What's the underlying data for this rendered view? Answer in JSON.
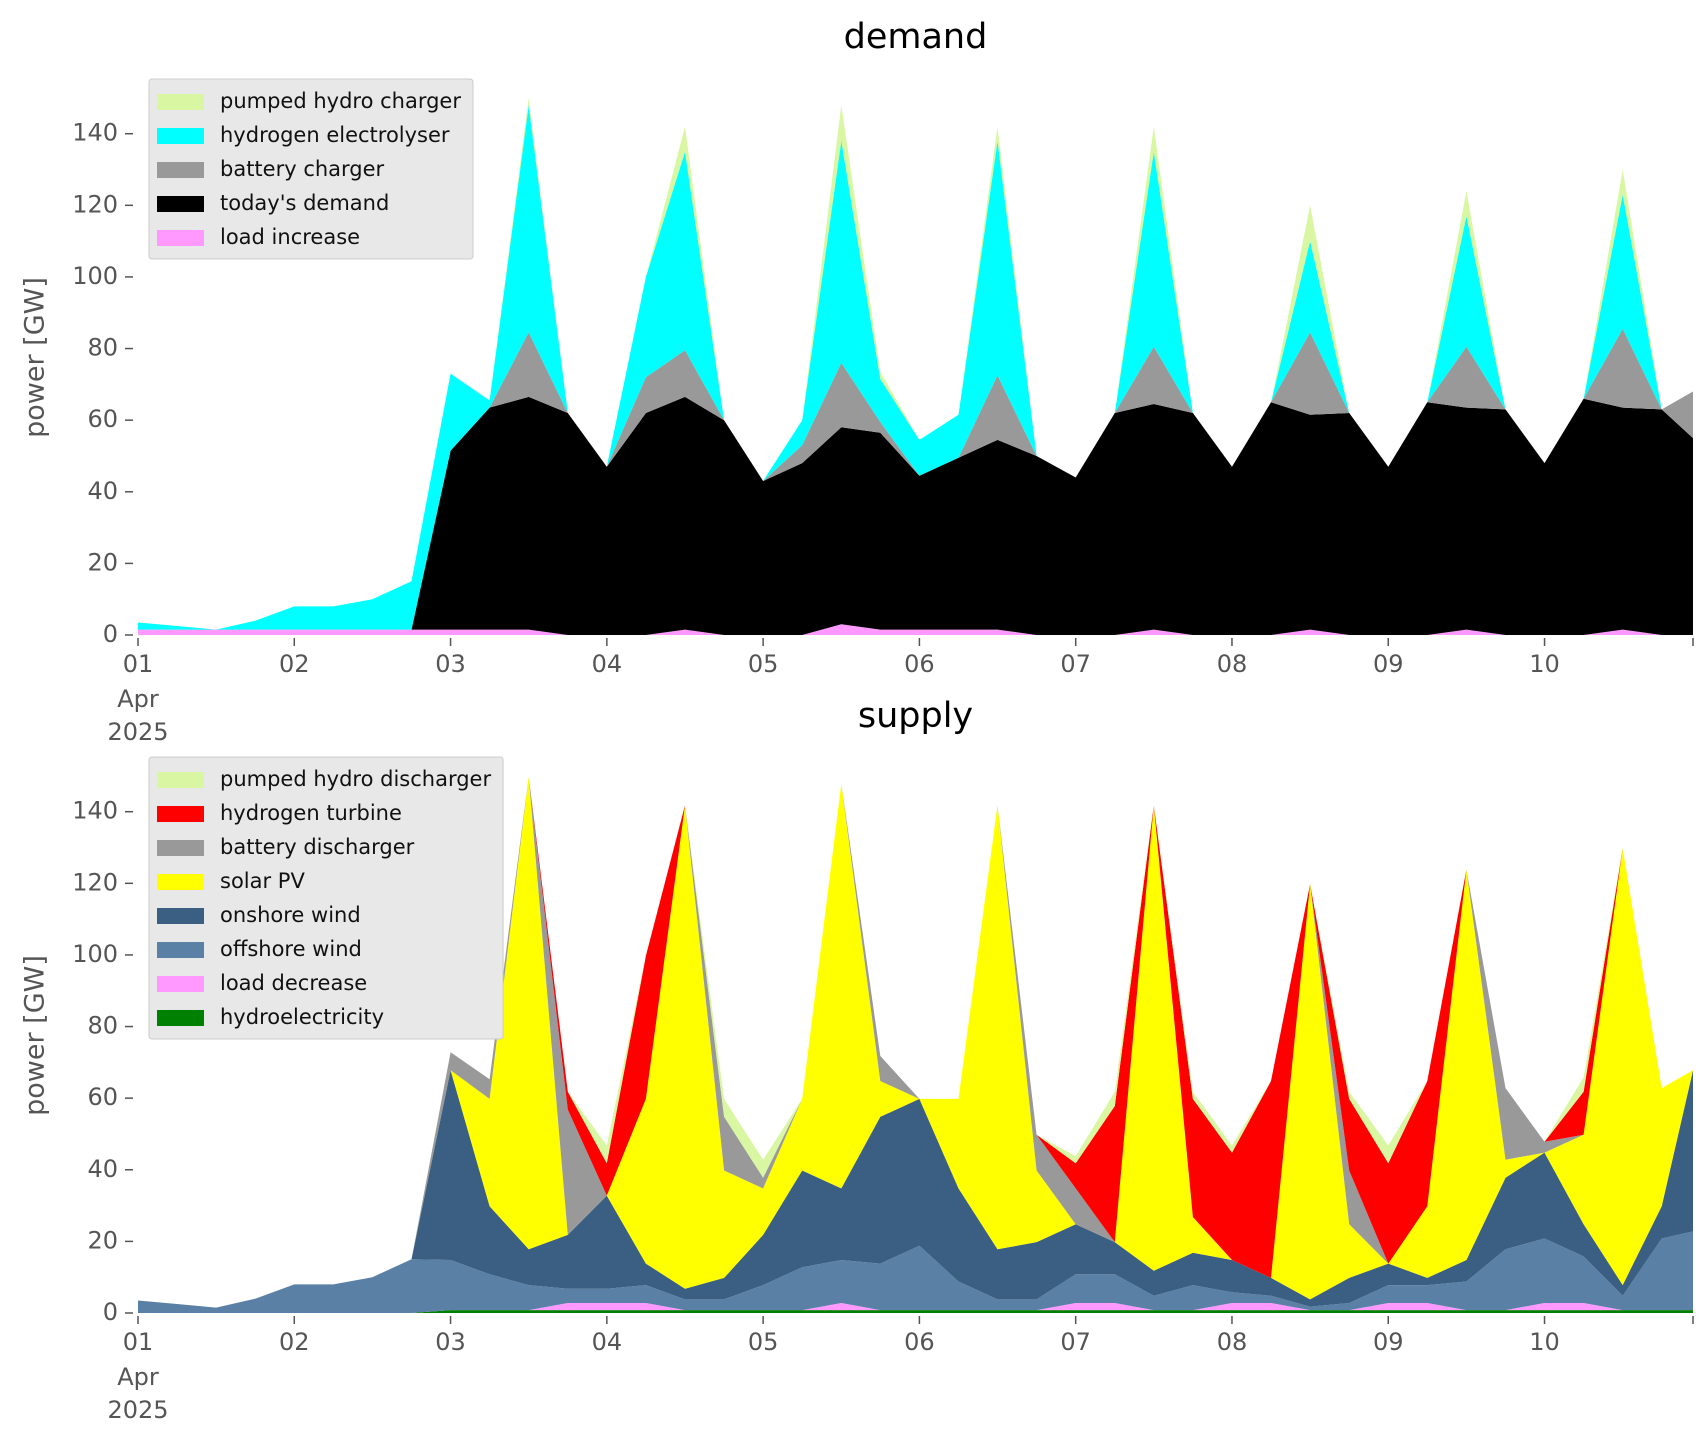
{
  "chart_data": [
    {
      "type": "stacked_area",
      "title": "demand",
      "ylabel": "power [GW]",
      "x": [
        0,
        0.25,
        0.5,
        0.75,
        1,
        1.25,
        1.5,
        1.75,
        2,
        2.25,
        2.5,
        2.75,
        3,
        3.25,
        3.5,
        3.75,
        4,
        4.25,
        4.5,
        4.75,
        5,
        5.25,
        5.5,
        5.75,
        6,
        6.25,
        6.5,
        6.75,
        7,
        7.25,
        7.5,
        7.75,
        8,
        8.25,
        8.5,
        8.75,
        9,
        9.25,
        9.5,
        9.75,
        9.95
      ],
      "xlim": [
        0,
        9.95
      ],
      "xticks": [
        {
          "value": 0,
          "label": "01"
        },
        {
          "value": 1,
          "label": "02"
        },
        {
          "value": 2,
          "label": "03"
        },
        {
          "value": 3,
          "label": "04"
        },
        {
          "value": 4,
          "label": "05"
        },
        {
          "value": 5,
          "label": "06"
        },
        {
          "value": 6,
          "label": "07"
        },
        {
          "value": 7,
          "label": "08"
        },
        {
          "value": 8,
          "label": "09"
        },
        {
          "value": 9,
          "label": "10"
        }
      ],
      "xtick_sublabels": [
        "Apr",
        "2025"
      ],
      "ylim": [
        0,
        155
      ],
      "yticks": [
        0,
        20,
        40,
        60,
        80,
        100,
        120,
        140
      ],
      "legend": "upper left",
      "series": [
        {
          "name": "load increase",
          "color": "#ff99ff",
          "values": [
            1.5,
            1.5,
            1.5,
            1.5,
            1.5,
            1.5,
            1.5,
            1.5,
            1.5,
            1.5,
            1.5,
            0,
            0,
            0,
            1.5,
            0,
            0,
            0,
            3,
            1.5,
            1.5,
            1.5,
            1.5,
            0,
            0,
            0,
            1.5,
            0,
            0,
            0,
            1.5,
            0,
            0,
            0,
            1.5,
            0,
            0,
            0,
            1.5,
            0,
            0
          ]
        },
        {
          "name": "today's demand",
          "color": "#000000",
          "values": [
            0,
            0,
            0,
            0,
            0,
            0,
            0,
            0,
            50,
            62,
            65,
            62,
            47,
            62,
            65,
            60,
            43,
            48,
            55,
            55,
            43,
            48,
            53,
            50,
            44,
            62,
            63,
            62,
            47,
            65,
            60,
            62,
            47,
            65,
            62,
            63,
            48,
            66,
            62,
            63,
            55
          ]
        },
        {
          "name": "battery charger",
          "color": "#999999",
          "values": [
            0,
            0,
            0,
            0,
            0,
            0,
            0,
            0,
            0,
            0,
            18,
            0,
            0,
            10,
            13,
            0,
            0,
            5,
            18,
            3,
            0,
            0,
            18,
            0,
            0,
            0,
            16,
            0,
            0,
            0,
            23,
            0,
            0,
            0,
            17,
            0,
            0,
            0,
            22,
            0,
            13
          ]
        },
        {
          "name": "hydrogen electrolyser",
          "color": "#00ffff",
          "values": [
            2,
            1,
            0,
            2.5,
            6.5,
            6.5,
            8.5,
            13.5,
            21.5,
            2,
            63.5,
            0,
            0,
            28,
            55.5,
            0,
            0,
            7,
            62,
            12,
            10,
            12,
            65.5,
            0,
            0,
            0,
            54.5,
            0,
            0,
            0,
            25.5,
            0,
            0,
            0,
            36.5,
            0,
            0,
            0,
            37.5,
            0,
            0
          ]
        },
        {
          "name": "pumped hydro charger",
          "color": "#d9f7a3",
          "values": [
            0,
            0,
            0,
            0,
            0,
            0,
            0,
            0,
            0,
            0,
            2,
            0,
            0,
            0,
            7,
            0,
            0,
            0,
            10,
            2,
            0,
            0,
            4,
            0,
            0,
            0,
            7,
            0,
            0,
            0,
            10,
            0,
            0,
            0,
            7,
            0,
            0,
            0,
            7,
            0,
            0
          ]
        }
      ]
    },
    {
      "type": "stacked_area",
      "title": "supply",
      "ylabel": "power [GW]",
      "x": [
        0,
        0.25,
        0.5,
        0.75,
        1,
        1.25,
        1.5,
        1.75,
        2,
        2.25,
        2.5,
        2.75,
        3,
        3.25,
        3.5,
        3.75,
        4,
        4.25,
        4.5,
        4.75,
        5,
        5.25,
        5.5,
        5.75,
        6,
        6.25,
        6.5,
        6.75,
        7,
        7.25,
        7.5,
        7.75,
        8,
        8.25,
        8.5,
        8.75,
        9,
        9.25,
        9.5,
        9.75,
        9.95
      ],
      "xlim": [
        0,
        9.95
      ],
      "xticks": [
        {
          "value": 0,
          "label": "01"
        },
        {
          "value": 1,
          "label": "02"
        },
        {
          "value": 2,
          "label": "03"
        },
        {
          "value": 3,
          "label": "04"
        },
        {
          "value": 4,
          "label": "05"
        },
        {
          "value": 5,
          "label": "06"
        },
        {
          "value": 6,
          "label": "07"
        },
        {
          "value": 7,
          "label": "08"
        },
        {
          "value": 8,
          "label": "09"
        },
        {
          "value": 9,
          "label": "10"
        }
      ],
      "xtick_sublabels": [
        "Apr",
        "2025"
      ],
      "ylim": [
        0,
        155
      ],
      "yticks": [
        0,
        20,
        40,
        60,
        80,
        100,
        120,
        140
      ],
      "legend": "upper left",
      "series": [
        {
          "name": "hydroelectricity",
          "color": "#008000",
          "values": [
            0,
            0,
            0,
            0,
            0,
            0,
            0,
            0,
            0.8,
            0.8,
            0.8,
            0.8,
            0.8,
            0.8,
            0.8,
            0.8,
            0.8,
            0.8,
            0.8,
            0.8,
            0.8,
            0.8,
            0.8,
            0.8,
            0.8,
            0.8,
            0.8,
            0.8,
            0.8,
            0.8,
            0.8,
            0.8,
            0.8,
            0.8,
            0.8,
            0.8,
            0.8,
            0.8,
            0.8,
            0.8,
            0.8
          ]
        },
        {
          "name": "load decrease",
          "color": "#ff99ff",
          "values": [
            0,
            0,
            0,
            0,
            0,
            0,
            0,
            0,
            0,
            0,
            0,
            2,
            2,
            2,
            0,
            0,
            0,
            0,
            2,
            0,
            0,
            0,
            0,
            0,
            2,
            2,
            0,
            0,
            2,
            2,
            0,
            0,
            2,
            2,
            0,
            0,
            2,
            2,
            0,
            0,
            0
          ]
        },
        {
          "name": "offshore wind",
          "color": "#5b80a5",
          "values": [
            3.5,
            2.5,
            1.5,
            4,
            8,
            8,
            10,
            15,
            14,
            10,
            7,
            4,
            4,
            5,
            3,
            3,
            7,
            12,
            12,
            13,
            18,
            8,
            3,
            3,
            8,
            8,
            4,
            7,
            3,
            2,
            1,
            2,
            5,
            5,
            8,
            17,
            18,
            13,
            4,
            20,
            22
          ]
        },
        {
          "name": "onshore wind",
          "color": "#3a5f82",
          "values": [
            0,
            0,
            0,
            0,
            0,
            0,
            0,
            0,
            53,
            19,
            10,
            15,
            26,
            6,
            3,
            6,
            14,
            27,
            20,
            41,
            41,
            26,
            14,
            16,
            14,
            9,
            7,
            9,
            9,
            5,
            2,
            7,
            6,
            2,
            6,
            20,
            24,
            9,
            3,
            9,
            45
          ]
        },
        {
          "name": "solar PV",
          "color": "#ffff00",
          "values": [
            0,
            0,
            0,
            0,
            0,
            0,
            0,
            0,
            0,
            30,
            132,
            0,
            0,
            46,
            135,
            30,
            13,
            20,
            113,
            10,
            0,
            25,
            124,
            20,
            0,
            0,
            130,
            10,
            0,
            0,
            116,
            15,
            0,
            20,
            109,
            5,
            0,
            25,
            122,
            33,
            0
          ]
        },
        {
          "name": "battery discharger",
          "color": "#999999",
          "values": [
            0,
            0,
            0,
            0,
            0,
            0,
            0,
            0,
            5,
            5.5,
            0,
            35,
            0,
            0,
            0,
            15,
            3,
            0,
            0,
            7,
            0,
            0,
            0,
            10,
            10,
            0,
            0,
            0,
            0,
            0,
            0,
            15,
            0,
            0,
            0,
            20,
            3,
            0,
            0,
            0,
            0
          ]
        },
        {
          "name": "hydrogen turbine",
          "color": "#ff0000",
          "values": [
            0,
            0,
            0,
            0,
            0,
            0,
            0,
            0,
            0,
            0,
            0,
            5,
            9,
            40,
            0,
            0,
            0,
            0,
            0,
            0,
            0,
            0,
            0,
            0,
            7,
            38,
            0,
            33,
            30,
            55,
            0,
            20,
            28,
            35,
            0,
            0,
            0,
            12,
            0,
            0,
            0
          ]
        },
        {
          "name": "pumped hydro discharger",
          "color": "#d9f7a3",
          "values": [
            0,
            0,
            0,
            0,
            0,
            0,
            0,
            0,
            0,
            0,
            0,
            0,
            5,
            0,
            0,
            5,
            5,
            0,
            0,
            0,
            0,
            0,
            0,
            0,
            2,
            4,
            0,
            2,
            2,
            0,
            0,
            2,
            5,
            0,
            0,
            0,
            0,
            4,
            0,
            0,
            0
          ]
        }
      ]
    }
  ]
}
